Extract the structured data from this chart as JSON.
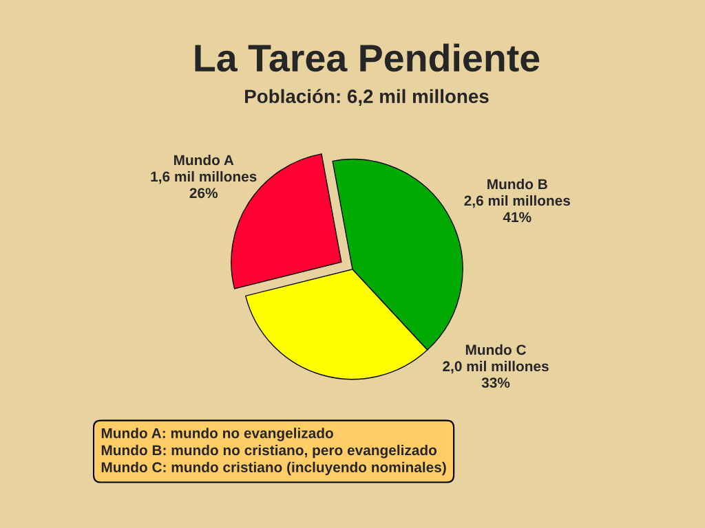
{
  "chart_data": {
    "type": "pie",
    "title": "La Tarea Pendiente",
    "subtitle": "Población: 6,2 mil millones",
    "categories": [
      "Mundo A",
      "Mundo B",
      "Mundo C"
    ],
    "values": [
      26,
      41,
      33
    ],
    "value_labels": [
      "1,6 mil millones\n26%",
      "2,6 mil millones\n41%",
      "2,0 mil millones\n33%"
    ],
    "colors": [
      "#ff0033",
      "#00aa00",
      "#ffff00"
    ],
    "annotations": [
      "Mundo A: mundo no evangelizado\nMundo B: mundo no cristiano, pero evangelizado\nMundo C: mundo cristiano (incluyendo nominales)"
    ]
  }
}
